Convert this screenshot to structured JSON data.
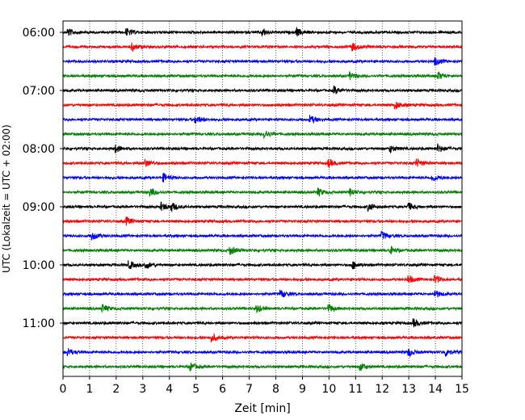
{
  "chart_data": {
    "type": "line",
    "title": "",
    "xlabel": "Zeit  [min]",
    "ylabel": "UTC (Lokalzeit = UTC + 02:00)",
    "xlim": [
      0,
      15
    ],
    "x_ticks": [
      0,
      1,
      2,
      3,
      4,
      5,
      6,
      7,
      8,
      9,
      10,
      11,
      12,
      13,
      14,
      15
    ],
    "vertical_gridlines": "dotted",
    "trace_interval_minutes": 15,
    "trace_start": "06:00",
    "trace_colors": [
      "#000000",
      "#ff0000",
      "#0000ff",
      "#008000"
    ],
    "y_ticks": [
      "06:00",
      "07:00",
      "08:00",
      "09:00",
      "10:00",
      "11:00"
    ],
    "series": [
      {
        "start": "06:00",
        "color": "#000000",
        "events_min": [
          0.2,
          2.4,
          7.5,
          8.8
        ]
      },
      {
        "start": "06:15",
        "color": "#ff0000",
        "events_min": [
          2.6,
          10.9
        ]
      },
      {
        "start": "06:30",
        "color": "#0000ff",
        "events_min": [
          14.0
        ]
      },
      {
        "start": "06:45",
        "color": "#008000",
        "events_min": [
          10.8,
          14.1
        ]
      },
      {
        "start": "07:00",
        "color": "#000000",
        "events_min": [
          10.2
        ]
      },
      {
        "start": "07:15",
        "color": "#ff0000",
        "events_min": [
          12.5
        ]
      },
      {
        "start": "07:30",
        "color": "#0000ff",
        "events_min": [
          5.0,
          9.3
        ]
      },
      {
        "start": "07:45",
        "color": "#008000",
        "events_min": [
          7.6
        ]
      },
      {
        "start": "08:00",
        "color": "#000000",
        "events_min": [
          2.0,
          12.3,
          14.1
        ]
      },
      {
        "start": "08:15",
        "color": "#ff0000",
        "events_min": [
          3.1,
          10.0,
          13.3
        ]
      },
      {
        "start": "08:30",
        "color": "#0000ff",
        "events_min": [
          3.8,
          13.9
        ]
      },
      {
        "start": "08:45",
        "color": "#008000",
        "events_min": [
          3.3,
          9.6,
          10.8
        ]
      },
      {
        "start": "09:00",
        "color": "#000000",
        "events_min": [
          3.7,
          4.1,
          11.5,
          13.0
        ]
      },
      {
        "start": "09:15",
        "color": "#ff0000",
        "events_min": [
          2.4
        ]
      },
      {
        "start": "09:30",
        "color": "#0000ff",
        "events_min": [
          1.1,
          12.0
        ]
      },
      {
        "start": "09:45",
        "color": "#008000",
        "events_min": [
          6.3,
          12.3
        ]
      },
      {
        "start": "10:00",
        "color": "#000000",
        "events_min": [
          2.5,
          3.1,
          10.9
        ]
      },
      {
        "start": "10:15",
        "color": "#ff0000",
        "events_min": [
          13.0,
          14.0
        ]
      },
      {
        "start": "10:30",
        "color": "#0000ff",
        "events_min": [
          8.2,
          14.0
        ]
      },
      {
        "start": "10:45",
        "color": "#008000",
        "events_min": [
          1.5,
          7.3,
          10.0
        ]
      },
      {
        "start": "11:00",
        "color": "#000000",
        "events_min": [
          13.2
        ]
      },
      {
        "start": "11:15",
        "color": "#ff0000",
        "events_min": [
          5.6
        ]
      },
      {
        "start": "11:30",
        "color": "#0000ff",
        "events_min": [
          0.2,
          13.0,
          14.4
        ]
      },
      {
        "start": "11:45",
        "color": "#008000",
        "events_min": [
          4.8,
          11.2
        ]
      }
    ]
  }
}
